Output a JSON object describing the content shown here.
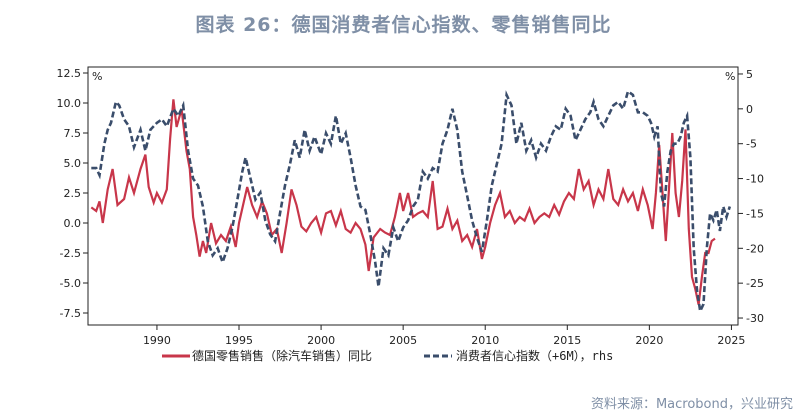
{
  "title": "图表 26：德国消费者信心指数、零售销售同比",
  "source": "资料来源：Macrobond，兴业研究",
  "colors": {
    "series1": "#c8364a",
    "series2": "#3a4d6b"
  },
  "chart_data": {
    "type": "line",
    "xlim": [
      1985.8,
      2025.4
    ],
    "x_ticks": [
      1990,
      1995,
      2000,
      2005,
      2010,
      2015,
      2020,
      2025
    ],
    "left_axis": {
      "unit": "%",
      "range": [
        -8.5,
        13.0
      ],
      "ticks": [
        12.5,
        10.0,
        7.5,
        5.0,
        2.5,
        0.0,
        -2.5,
        -5.0,
        -7.5
      ]
    },
    "right_axis": {
      "unit": "%",
      "range": [
        -31.0,
        6.0
      ],
      "ticks": [
        5,
        0,
        -5,
        -10,
        -15,
        -20,
        -25,
        -30
      ]
    },
    "series": [
      {
        "name": "德国零售销售（除汽车销售）同比",
        "axis": "left",
        "style": "solid",
        "points": [
          [
            1986.0,
            1.3
          ],
          [
            1986.3,
            1.0
          ],
          [
            1986.5,
            1.8
          ],
          [
            1986.7,
            0.0
          ],
          [
            1987.0,
            2.8
          ],
          [
            1987.3,
            4.5
          ],
          [
            1987.6,
            1.5
          ],
          [
            1988.0,
            2.0
          ],
          [
            1988.3,
            3.8
          ],
          [
            1988.6,
            2.5
          ],
          [
            1989.0,
            4.5
          ],
          [
            1989.3,
            5.7
          ],
          [
            1989.5,
            3.0
          ],
          [
            1989.8,
            1.7
          ],
          [
            1990.0,
            2.5
          ],
          [
            1990.3,
            1.7
          ],
          [
            1990.6,
            2.8
          ],
          [
            1990.8,
            7.0
          ],
          [
            1991.0,
            10.3
          ],
          [
            1991.2,
            8.0
          ],
          [
            1991.5,
            9.5
          ],
          [
            1991.8,
            6.0
          ],
          [
            1992.0,
            4.5
          ],
          [
            1992.2,
            0.5
          ],
          [
            1992.4,
            -1.0
          ],
          [
            1992.6,
            -2.8
          ],
          [
            1992.8,
            -1.5
          ],
          [
            1993.0,
            -2.5
          ],
          [
            1993.3,
            0.0
          ],
          [
            1993.6,
            -1.7
          ],
          [
            1993.9,
            -1.0
          ],
          [
            1994.2,
            -1.5
          ],
          [
            1994.5,
            -0.3
          ],
          [
            1994.8,
            -2.0
          ],
          [
            1995.0,
            0.0
          ],
          [
            1995.3,
            1.8
          ],
          [
            1995.5,
            3.0
          ],
          [
            1995.8,
            1.5
          ],
          [
            1996.1,
            0.5
          ],
          [
            1996.4,
            1.8
          ],
          [
            1996.7,
            0.8
          ],
          [
            1997.0,
            -1.0
          ],
          [
            1997.3,
            -0.5
          ],
          [
            1997.6,
            -2.5
          ],
          [
            1997.9,
            0.0
          ],
          [
            1998.2,
            2.8
          ],
          [
            1998.5,
            1.5
          ],
          [
            1998.8,
            -0.3
          ],
          [
            1999.1,
            -0.7
          ],
          [
            1999.4,
            0.0
          ],
          [
            1999.7,
            0.5
          ],
          [
            2000.0,
            -0.8
          ],
          [
            2000.3,
            0.8
          ],
          [
            2000.6,
            1.0
          ],
          [
            2000.9,
            -0.2
          ],
          [
            2001.2,
            1.0
          ],
          [
            2001.5,
            -0.5
          ],
          [
            2001.8,
            -0.8
          ],
          [
            2002.1,
            0.0
          ],
          [
            2002.4,
            -0.5
          ],
          [
            2002.7,
            -1.8
          ],
          [
            2002.9,
            -4.0
          ],
          [
            2003.2,
            -1.2
          ],
          [
            2003.6,
            -0.5
          ],
          [
            2003.9,
            -0.8
          ],
          [
            2004.2,
            -1.0
          ],
          [
            2004.5,
            0.5
          ],
          [
            2004.8,
            2.5
          ],
          [
            2005.0,
            1.0
          ],
          [
            2005.3,
            2.5
          ],
          [
            2005.6,
            0.5
          ],
          [
            2005.9,
            0.8
          ],
          [
            2006.2,
            1.0
          ],
          [
            2006.5,
            0.5
          ],
          [
            2006.8,
            3.5
          ],
          [
            2007.1,
            -0.5
          ],
          [
            2007.4,
            -0.3
          ],
          [
            2007.7,
            1.2
          ],
          [
            2008.0,
            -0.5
          ],
          [
            2008.3,
            0.2
          ],
          [
            2008.6,
            -1.5
          ],
          [
            2008.9,
            -1.0
          ],
          [
            2009.2,
            -2.0
          ],
          [
            2009.5,
            -0.5
          ],
          [
            2009.8,
            -3.0
          ],
          [
            2010.0,
            -2.0
          ],
          [
            2010.3,
            0.0
          ],
          [
            2010.6,
            1.5
          ],
          [
            2010.9,
            2.5
          ],
          [
            2011.2,
            0.5
          ],
          [
            2011.5,
            1.0
          ],
          [
            2011.8,
            0.0
          ],
          [
            2012.1,
            0.5
          ],
          [
            2012.4,
            0.2
          ],
          [
            2012.7,
            1.2
          ],
          [
            2013.0,
            0.0
          ],
          [
            2013.3,
            0.5
          ],
          [
            2013.6,
            0.8
          ],
          [
            2013.9,
            0.5
          ],
          [
            2014.2,
            1.5
          ],
          [
            2014.5,
            0.7
          ],
          [
            2014.8,
            1.8
          ],
          [
            2015.1,
            2.5
          ],
          [
            2015.4,
            2.0
          ],
          [
            2015.7,
            4.5
          ],
          [
            2016.0,
            2.8
          ],
          [
            2016.3,
            3.5
          ],
          [
            2016.6,
            1.5
          ],
          [
            2016.9,
            2.8
          ],
          [
            2017.2,
            2.0
          ],
          [
            2017.5,
            4.5
          ],
          [
            2017.8,
            2.0
          ],
          [
            2018.1,
            1.5
          ],
          [
            2018.4,
            2.8
          ],
          [
            2018.7,
            1.8
          ],
          [
            2019.0,
            2.5
          ],
          [
            2019.3,
            1.0
          ],
          [
            2019.6,
            2.8
          ],
          [
            2019.9,
            1.5
          ],
          [
            2020.2,
            -0.5
          ],
          [
            2020.4,
            2.5
          ],
          [
            2020.6,
            6.5
          ],
          [
            2020.8,
            2.5
          ],
          [
            2021.0,
            -1.5
          ],
          [
            2021.2,
            3.0
          ],
          [
            2021.4,
            7.5
          ],
          [
            2021.6,
            2.5
          ],
          [
            2021.8,
            0.5
          ],
          [
            2022.0,
            3.5
          ],
          [
            2022.2,
            7.8
          ],
          [
            2022.4,
            -0.5
          ],
          [
            2022.6,
            -4.5
          ],
          [
            2022.8,
            -5.5
          ],
          [
            2023.0,
            -6.8
          ],
          [
            2023.2,
            -4.5
          ],
          [
            2023.4,
            -2.5
          ],
          [
            2023.6,
            -2.5
          ],
          [
            2023.8,
            -1.5
          ],
          [
            2024.0,
            -1.3
          ]
        ]
      },
      {
        "name": "消费者信心指数（+6M），rhs",
        "axis": "right",
        "style": "dashed",
        "points": [
          [
            1986.0,
            -8.5
          ],
          [
            1986.3,
            -8.5
          ],
          [
            1986.5,
            -9.5
          ],
          [
            1986.8,
            -5.0
          ],
          [
            1987.0,
            -3.0
          ],
          [
            1987.2,
            -2.0
          ],
          [
            1987.5,
            1.0
          ],
          [
            1987.7,
            0.5
          ],
          [
            1988.0,
            -1.5
          ],
          [
            1988.3,
            -2.5
          ],
          [
            1988.6,
            -5.5
          ],
          [
            1989.0,
            -3.0
          ],
          [
            1989.3,
            -6.0
          ],
          [
            1989.6,
            -3.0
          ],
          [
            1990.0,
            -2.0
          ],
          [
            1990.3,
            -1.5
          ],
          [
            1990.6,
            -2.5
          ],
          [
            1991.0,
            0.0
          ],
          [
            1991.3,
            -1.0
          ],
          [
            1991.6,
            0.5
          ],
          [
            1991.9,
            -6.0
          ],
          [
            1992.2,
            -10.0
          ],
          [
            1992.5,
            -11.0
          ],
          [
            1992.8,
            -14.0
          ],
          [
            1993.1,
            -19.0
          ],
          [
            1993.4,
            -21.0
          ],
          [
            1993.7,
            -20.0
          ],
          [
            1994.0,
            -22.0
          ],
          [
            1994.3,
            -20.0
          ],
          [
            1994.6,
            -17.0
          ],
          [
            1994.9,
            -13.0
          ],
          [
            1995.2,
            -9.0
          ],
          [
            1995.4,
            -7.0
          ],
          [
            1995.7,
            -10.0
          ],
          [
            1996.0,
            -13.0
          ],
          [
            1996.3,
            -12.0
          ],
          [
            1996.6,
            -16.0
          ],
          [
            1996.9,
            -18.0
          ],
          [
            1997.2,
            -19.0
          ],
          [
            1997.5,
            -15.0
          ],
          [
            1997.8,
            -11.0
          ],
          [
            1998.1,
            -8.0
          ],
          [
            1998.4,
            -4.5
          ],
          [
            1998.7,
            -7.0
          ],
          [
            1999.0,
            -3.0
          ],
          [
            1999.3,
            -6.0
          ],
          [
            1999.6,
            -4.0
          ],
          [
            2000.0,
            -6.5
          ],
          [
            2000.3,
            -3.5
          ],
          [
            2000.6,
            -5.0
          ],
          [
            2000.9,
            -1.0
          ],
          [
            2001.2,
            -5.0
          ],
          [
            2001.5,
            -3.5
          ],
          [
            2001.8,
            -7.0
          ],
          [
            2002.1,
            -11.0
          ],
          [
            2002.4,
            -14.0
          ],
          [
            2002.7,
            -14.5
          ],
          [
            2003.0,
            -18.0
          ],
          [
            2003.3,
            -22.0
          ],
          [
            2003.5,
            -25.5
          ],
          [
            2003.8,
            -20.0
          ],
          [
            2004.1,
            -21.0
          ],
          [
            2004.4,
            -17.0
          ],
          [
            2004.7,
            -19.0
          ],
          [
            2005.0,
            -17.0
          ],
          [
            2005.3,
            -16.0
          ],
          [
            2005.6,
            -14.0
          ],
          [
            2005.9,
            -13.0
          ],
          [
            2006.2,
            -9.0
          ],
          [
            2006.5,
            -10.0
          ],
          [
            2006.8,
            -8.5
          ],
          [
            2007.1,
            -9.0
          ],
          [
            2007.4,
            -5.0
          ],
          [
            2007.7,
            -3.0
          ],
          [
            2008.0,
            0.0
          ],
          [
            2008.3,
            -3.0
          ],
          [
            2008.6,
            -9.0
          ],
          [
            2008.9,
            -12.5
          ],
          [
            2009.2,
            -16.0
          ],
          [
            2009.5,
            -18.5
          ],
          [
            2009.8,
            -20.5
          ],
          [
            2010.1,
            -16.0
          ],
          [
            2010.4,
            -11.0
          ],
          [
            2010.7,
            -8.0
          ],
          [
            2011.0,
            -5.0
          ],
          [
            2011.3,
            2.0
          ],
          [
            2011.6,
            0.5
          ],
          [
            2011.9,
            -5.0
          ],
          [
            2012.2,
            -2.0
          ],
          [
            2012.5,
            -6.0
          ],
          [
            2012.8,
            -4.5
          ],
          [
            2013.1,
            -7.0
          ],
          [
            2013.4,
            -5.0
          ],
          [
            2013.7,
            -6.0
          ],
          [
            2014.0,
            -4.0
          ],
          [
            2014.3,
            -2.5
          ],
          [
            2014.6,
            -3.0
          ],
          [
            2014.9,
            0.0
          ],
          [
            2015.2,
            -1.0
          ],
          [
            2015.5,
            -4.5
          ],
          [
            2015.8,
            -3.0
          ],
          [
            2016.1,
            -1.5
          ],
          [
            2016.4,
            -0.5
          ],
          [
            2016.6,
            1.0
          ],
          [
            2016.9,
            -1.5
          ],
          [
            2017.2,
            -2.5
          ],
          [
            2017.5,
            -1.0
          ],
          [
            2017.8,
            0.5
          ],
          [
            2018.1,
            1.0
          ],
          [
            2018.4,
            0.0
          ],
          [
            2018.7,
            2.5
          ],
          [
            2019.0,
            2.0
          ],
          [
            2019.3,
            -0.5
          ],
          [
            2019.6,
            -0.5
          ],
          [
            2019.9,
            -1.0
          ],
          [
            2020.1,
            -2.0
          ],
          [
            2020.3,
            -4.0
          ],
          [
            2020.5,
            -2.5
          ],
          [
            2020.7,
            -12.0
          ],
          [
            2020.9,
            -14.0
          ],
          [
            2021.1,
            -9.0
          ],
          [
            2021.3,
            -6.0
          ],
          [
            2021.5,
            -5.0
          ],
          [
            2021.7,
            -5.0
          ],
          [
            2021.9,
            -4.0
          ],
          [
            2022.1,
            -2.0
          ],
          [
            2022.3,
            -1.0
          ],
          [
            2022.5,
            -7.0
          ],
          [
            2022.7,
            -20.0
          ],
          [
            2022.9,
            -26.0
          ],
          [
            2023.1,
            -29.0
          ],
          [
            2023.3,
            -28.0
          ],
          [
            2023.5,
            -20.0
          ],
          [
            2023.7,
            -15.0
          ],
          [
            2023.9,
            -16.0
          ],
          [
            2024.1,
            -14.5
          ],
          [
            2024.3,
            -17.5
          ],
          [
            2024.5,
            -14.0
          ],
          [
            2024.7,
            -15.5
          ],
          [
            2024.9,
            -14.0
          ]
        ]
      }
    ]
  }
}
